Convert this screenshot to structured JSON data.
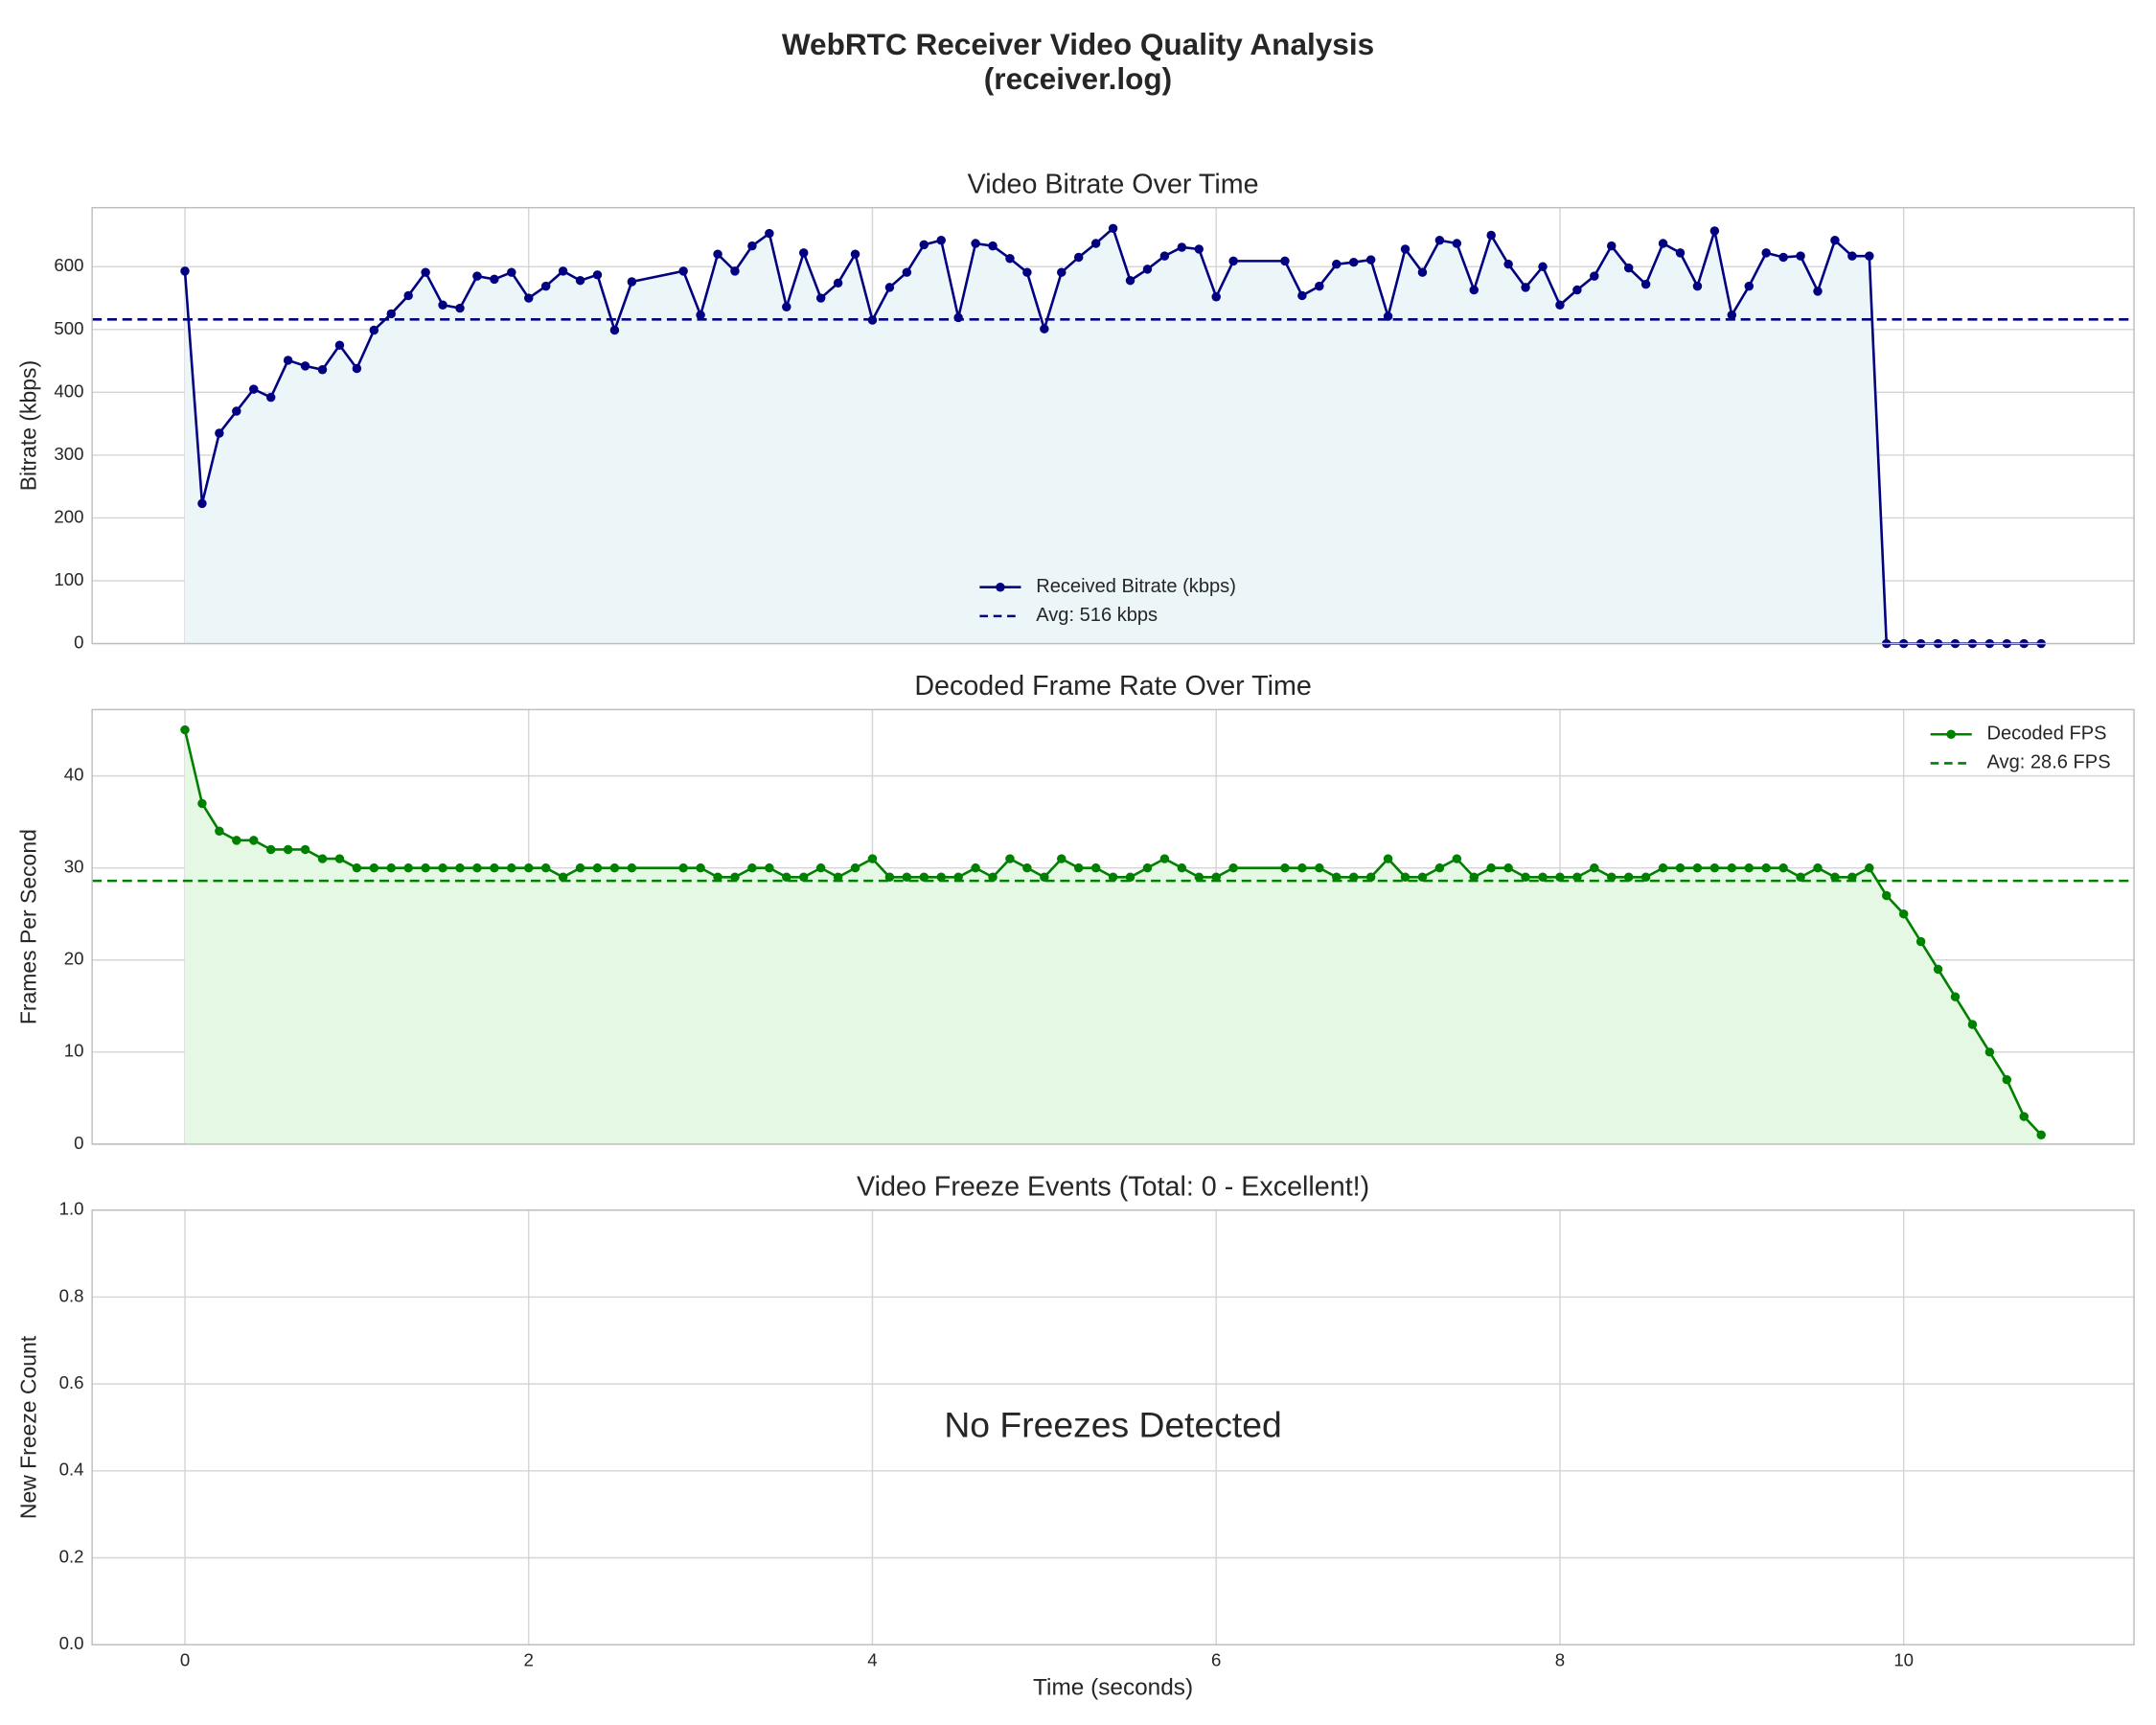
{
  "title": [
    "WebRTC Receiver Video Quality Analysis",
    "(receiver.log)"
  ],
  "chart_data": [
    {
      "type": "line",
      "title": "Video Bitrate Over Time",
      "ylabel": "Bitrate (kbps)",
      "xlim": [
        -0.54,
        11.34
      ],
      "xticks": [
        0,
        2,
        4,
        6,
        8,
        10
      ],
      "xtick_labels": false,
      "ylim": [
        0,
        694
      ],
      "yticks": [
        0,
        100,
        200,
        300,
        400,
        500,
        600
      ],
      "grid": true,
      "legend_loc": "lower center",
      "x": [
        0,
        0.1,
        0.2,
        0.3,
        0.4,
        0.5,
        0.6,
        0.7,
        0.8,
        0.9,
        1.0,
        1.1,
        1.2,
        1.3,
        1.4,
        1.5,
        1.6,
        1.7,
        1.8,
        1.9,
        2.0,
        2.1,
        2.2,
        2.3,
        2.4,
        2.5,
        2.6,
        2.9,
        3.0,
        3.1,
        3.2,
        3.3,
        3.4,
        3.5,
        3.6,
        3.7,
        3.8,
        3.9,
        4.0,
        4.1,
        4.2,
        4.3,
        4.4,
        4.5,
        4.6,
        4.7,
        4.8,
        4.9,
        5.0,
        5.1,
        5.2,
        5.3,
        5.4,
        5.5,
        5.6,
        5.7,
        5.8,
        5.9,
        6.0,
        6.1,
        6.4,
        6.5,
        6.6,
        6.7,
        6.8,
        6.9,
        7.0,
        7.1,
        7.2,
        7.3,
        7.4,
        7.5,
        7.6,
        7.7,
        7.8,
        7.9,
        8.0,
        8.1,
        8.2,
        8.3,
        8.4,
        8.5,
        8.6,
        8.7,
        8.8,
        8.9,
        9.0,
        9.1,
        9.2,
        9.3,
        9.4,
        9.5,
        9.6,
        9.7,
        9.8,
        9.9,
        10.0,
        10.1,
        10.2,
        10.3,
        10.4,
        10.5,
        10.6,
        10.7,
        10.8
      ],
      "series": [
        {
          "name": "Received Bitrate (kbps)",
          "color": "#000080",
          "fill": "#ecf6f9",
          "values": [
            593,
            223,
            335,
            370,
            405,
            392,
            451,
            442,
            436,
            475,
            438,
            499,
            525,
            554,
            591,
            539,
            534,
            585,
            580,
            591,
            550,
            569,
            593,
            578,
            587,
            499,
            576,
            593,
            523,
            620,
            593,
            633,
            653,
            536,
            622,
            550,
            574,
            620,
            515,
            567,
            591,
            635,
            642,
            519,
            637,
            633,
            613,
            591,
            501,
            591,
            615,
            637,
            661,
            578,
            596,
            617,
            631,
            628,
            552,
            609,
            609,
            554,
            569,
            604,
            607,
            611,
            521,
            628,
            591,
            642,
            637,
            563,
            650,
            604,
            567,
            600,
            539,
            563,
            585,
            633,
            598,
            572,
            637,
            622,
            569,
            657,
            523,
            569,
            622,
            615,
            617,
            561,
            642,
            617,
            617,
            0,
            0,
            0,
            0,
            0,
            0,
            0,
            0,
            0,
            0
          ]
        }
      ],
      "hlines": [
        {
          "name": "Avg: 516 kbps",
          "value": 516,
          "color": "#000080",
          "style": "dashed"
        }
      ]
    },
    {
      "type": "line",
      "title": "Decoded Frame Rate Over Time",
      "ylabel": "Frames Per Second",
      "xlim": [
        -0.54,
        11.34
      ],
      "xticks": [
        0,
        2,
        4,
        6,
        8,
        10
      ],
      "xtick_labels": false,
      "ylim": [
        0,
        47.2
      ],
      "yticks": [
        0,
        10,
        20,
        30,
        40
      ],
      "grid": true,
      "legend_loc": "upper right",
      "x": [
        0,
        0.1,
        0.2,
        0.3,
        0.4,
        0.5,
        0.6,
        0.7,
        0.8,
        0.9,
        1.0,
        1.1,
        1.2,
        1.3,
        1.4,
        1.5,
        1.6,
        1.7,
        1.8,
        1.9,
        2.0,
        2.1,
        2.2,
        2.3,
        2.4,
        2.5,
        2.6,
        2.9,
        3.0,
        3.1,
        3.2,
        3.3,
        3.4,
        3.5,
        3.6,
        3.7,
        3.8,
        3.9,
        4.0,
        4.1,
        4.2,
        4.3,
        4.4,
        4.5,
        4.6,
        4.7,
        4.8,
        4.9,
        5.0,
        5.1,
        5.2,
        5.3,
        5.4,
        5.5,
        5.6,
        5.7,
        5.8,
        5.9,
        6.0,
        6.1,
        6.4,
        6.5,
        6.6,
        6.7,
        6.8,
        6.9,
        7.0,
        7.1,
        7.2,
        7.3,
        7.4,
        7.5,
        7.6,
        7.7,
        7.8,
        7.9,
        8.0,
        8.1,
        8.2,
        8.3,
        8.4,
        8.5,
        8.6,
        8.7,
        8.8,
        8.9,
        9.0,
        9.1,
        9.2,
        9.3,
        9.4,
        9.5,
        9.6,
        9.7,
        9.8,
        9.9,
        10.0,
        10.1,
        10.2,
        10.3,
        10.4,
        10.5,
        10.6,
        10.7,
        10.8
      ],
      "series": [
        {
          "name": "Decoded FPS",
          "color": "#008000",
          "fill": "#e4f8e4",
          "values": [
            45,
            37,
            34,
            33,
            33,
            32,
            32,
            32,
            31,
            31,
            30,
            30,
            30,
            30,
            30,
            30,
            30,
            30,
            30,
            30,
            30,
            30,
            29,
            30,
            30,
            30,
            30,
            30,
            30,
            29,
            29,
            30,
            30,
            29,
            29,
            30,
            29,
            30,
            31,
            29,
            29,
            29,
            29,
            29,
            30,
            29,
            31,
            30,
            29,
            31,
            30,
            30,
            29,
            29,
            30,
            31,
            30,
            29,
            29,
            30,
            30,
            30,
            30,
            29,
            29,
            29,
            31,
            29,
            29,
            30,
            31,
            29,
            30,
            30,
            29,
            29,
            29,
            29,
            30,
            29,
            29,
            29,
            30,
            30,
            30,
            30,
            30,
            30,
            30,
            30,
            29,
            30,
            29,
            29,
            30,
            27,
            25,
            22,
            19,
            16,
            13,
            10,
            7,
            3,
            1
          ]
        }
      ],
      "hlines": [
        {
          "name": "Avg: 28.6 FPS",
          "value": 28.6,
          "color": "#008000",
          "style": "dashed"
        }
      ]
    },
    {
      "type": "line",
      "title": "Video Freeze Events (Total: 0 - Excellent!)",
      "title_color": "#008000",
      "ylabel": "New Freeze Count",
      "xlabel": "Time (seconds)",
      "xlim": [
        -0.54,
        11.34
      ],
      "xticks": [
        0,
        2,
        4,
        6,
        8,
        10
      ],
      "xtick_labels": true,
      "ylim": [
        0,
        1
      ],
      "yticks": [
        {
          "value": 0,
          "label": "0.0"
        },
        {
          "value": 0.2,
          "label": "0.2"
        },
        {
          "value": 0.4,
          "label": "0.4"
        },
        {
          "value": 0.6,
          "label": "0.6"
        },
        {
          "value": 0.8,
          "label": "0.8"
        },
        {
          "value": 1,
          "label": "1.0"
        }
      ],
      "grid": true,
      "annotation": {
        "text": "No Freezes Detected",
        "color": "#6cbf6c"
      }
    }
  ]
}
